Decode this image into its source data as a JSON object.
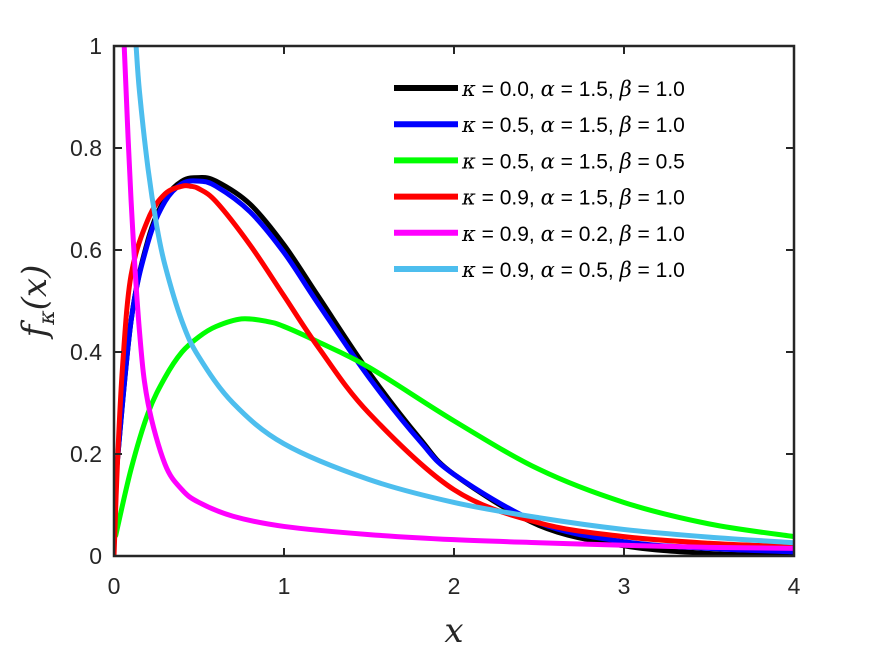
{
  "chart_data": {
    "type": "line",
    "title": "",
    "xlabel": "x",
    "ylabel": "f_κ(x)",
    "ylabel_parts": {
      "main": "f",
      "sub": "κ",
      "arg": "(x)"
    },
    "xlim": [
      0,
      4
    ],
    "ylim": [
      0,
      1
    ],
    "x_ticks": [
      0,
      1,
      2,
      3,
      4
    ],
    "x_tick_labels": [
      "0",
      "1",
      "2",
      "3",
      "4"
    ],
    "y_ticks": [
      0,
      0.2,
      0.4,
      0.6,
      0.8,
      1
    ],
    "y_tick_labels": [
      "0",
      "0.2",
      "0.4",
      "0.6",
      "0.8",
      "1"
    ],
    "grid": false,
    "legend_position": "top-right",
    "series": [
      {
        "name": "κ = 0.0, α = 1.5, β = 1.0",
        "label_parts": [
          "κ",
          " = 0.0, ",
          "α",
          " = 1.5, ",
          "β",
          " = 1.0"
        ],
        "color": "#000000",
        "x": [
          0.01,
          0.1,
          0.2,
          0.3,
          0.4,
          0.5,
          0.6,
          0.8,
          1.0,
          1.2,
          1.5,
          1.8,
          2.0,
          2.5,
          3.0,
          3.5,
          4.0
        ],
        "y": [
          0.15,
          0.46,
          0.62,
          0.7,
          0.735,
          0.742,
          0.735,
          0.69,
          0.61,
          0.51,
          0.36,
          0.23,
          0.16,
          0.06,
          0.02,
          0.005,
          0.001
        ]
      },
      {
        "name": "κ = 0.5, α = 1.5, β = 1.0",
        "label_parts": [
          "κ",
          " = 0.5, ",
          "α",
          " = 1.5, ",
          "β",
          " = 1.0"
        ],
        "color": "#0000ff",
        "x": [
          0.01,
          0.1,
          0.2,
          0.3,
          0.4,
          0.5,
          0.6,
          0.8,
          1.0,
          1.2,
          1.5,
          1.8,
          2.0,
          2.5,
          3.0,
          3.5,
          4.0
        ],
        "y": [
          0.15,
          0.46,
          0.615,
          0.695,
          0.73,
          0.735,
          0.725,
          0.675,
          0.595,
          0.495,
          0.35,
          0.225,
          0.16,
          0.065,
          0.028,
          0.015,
          0.008
        ]
      },
      {
        "name": "κ = 0.5, α = 1.5, β = 0.5",
        "label_parts": [
          "κ",
          " = 0.5, ",
          "α",
          " = 1.5, ",
          "β",
          " = 0.5"
        ],
        "color": "#00ff00",
        "x": [
          0.01,
          0.1,
          0.2,
          0.3,
          0.4,
          0.5,
          0.6,
          0.75,
          0.9,
          1.0,
          1.2,
          1.5,
          2.0,
          2.5,
          3.0,
          3.5,
          4.0
        ],
        "y": [
          0.04,
          0.17,
          0.28,
          0.35,
          0.4,
          0.43,
          0.45,
          0.465,
          0.46,
          0.45,
          0.42,
          0.37,
          0.265,
          0.17,
          0.105,
          0.063,
          0.038
        ]
      },
      {
        "name": "κ = 0.9, α = 1.5,  β = 1.0",
        "label_parts": [
          "κ",
          " = 0.9, ",
          "α",
          " = 1.5,  ",
          "β",
          " = 1.0"
        ],
        "color": "#ff0000",
        "x": [
          0.0,
          0.02,
          0.05,
          0.1,
          0.2,
          0.3,
          0.4,
          0.45,
          0.5,
          0.6,
          0.8,
          1.0,
          1.2,
          1.5,
          2.0,
          2.5,
          3.0,
          3.5,
          4.0
        ],
        "y": [
          0.0,
          0.18,
          0.37,
          0.55,
          0.66,
          0.71,
          0.725,
          0.725,
          0.72,
          0.695,
          0.61,
          0.51,
          0.41,
          0.28,
          0.13,
          0.065,
          0.038,
          0.025,
          0.018
        ]
      },
      {
        "name": "κ = 0.9, α = 0.2,  β = 1.0",
        "label_parts": [
          "κ",
          " = 0.9, ",
          "α",
          " = 0.2,  ",
          "β",
          " = 1.0"
        ],
        "color": "#ff00ff",
        "x": [
          0.06,
          0.1,
          0.15,
          0.2,
          0.3,
          0.4,
          0.5,
          0.7,
          1.0,
          1.5,
          2.0,
          2.5,
          3.0,
          3.5,
          4.0
        ],
        "y": [
          1.0,
          0.7,
          0.44,
          0.3,
          0.18,
          0.13,
          0.105,
          0.078,
          0.058,
          0.042,
          0.032,
          0.026,
          0.021,
          0.017,
          0.015
        ]
      },
      {
        "name": "κ = 0.9, α = 0.5,  β = 1.0",
        "label_parts": [
          "κ",
          " = 0.9, ",
          "α",
          " = 0.5,  ",
          "β",
          " = 1.0"
        ],
        "color": "#4dbeee",
        "x": [
          0.13,
          0.15,
          0.2,
          0.25,
          0.3,
          0.4,
          0.5,
          0.7,
          1.0,
          1.5,
          2.0,
          2.5,
          3.0,
          3.5,
          4.0
        ],
        "y": [
          1.0,
          0.91,
          0.76,
          0.65,
          0.57,
          0.46,
          0.39,
          0.3,
          0.22,
          0.15,
          0.105,
          0.075,
          0.052,
          0.037,
          0.026
        ]
      }
    ]
  }
}
